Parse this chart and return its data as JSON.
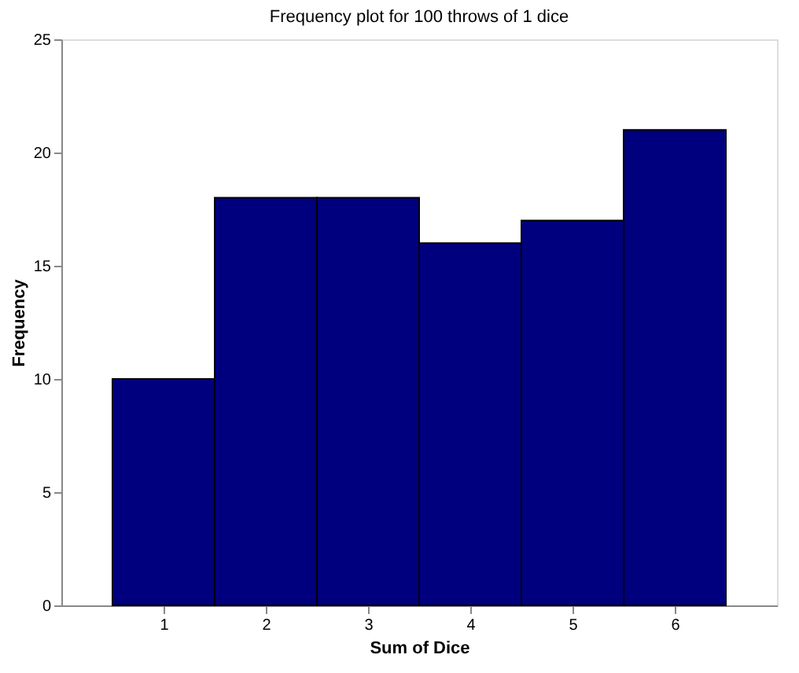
{
  "chart_data": {
    "type": "histogram",
    "title": "Frequency plot for 100 throws of 1 dice",
    "xlabel": "Sum of Dice",
    "ylabel": "Frequency",
    "bins": [
      0.5,
      1.5,
      2.5,
      3.5,
      4.5,
      5.5,
      6.5
    ],
    "values": [
      10,
      18,
      18,
      16,
      17,
      21
    ],
    "color": "#00007f",
    "xlim": [
      0,
      7
    ],
    "xticks": [
      1,
      2,
      3,
      4,
      5,
      6
    ],
    "ylim": [
      0,
      25
    ],
    "yticks": [
      0,
      5,
      10,
      15,
      20,
      25
    ],
    "grid": false
  }
}
